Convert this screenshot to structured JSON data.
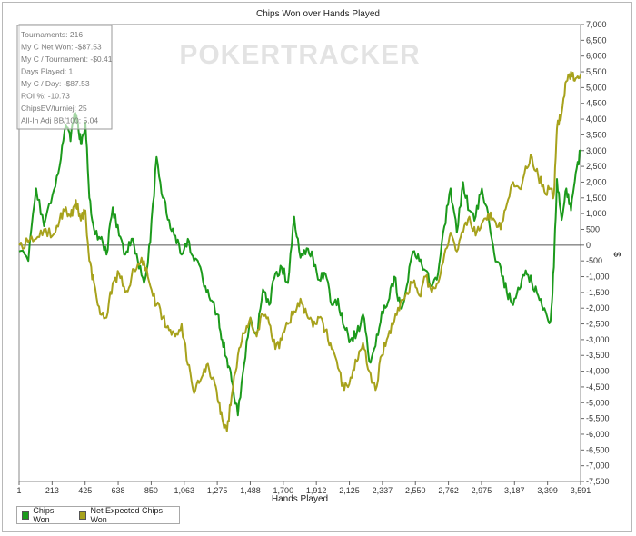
{
  "chart_data": {
    "type": "line",
    "title": "Chips Won over Hands Played",
    "xlabel": "Hands Played",
    "ylabel": "$",
    "xlim": [
      1,
      3591
    ],
    "ylim": [
      -7500,
      7000
    ],
    "x_tick_labels": [
      "1",
      "213",
      "425",
      "638",
      "850",
      "1,063",
      "1,275",
      "1,488",
      "1,700",
      "1,912",
      "2,125",
      "2,337",
      "2,550",
      "2,762",
      "2,975",
      "3,187",
      "3,399",
      "3,591"
    ],
    "y_tick_labels": [
      "7,000",
      "6,500",
      "6,000",
      "5,500",
      "5,000",
      "4,500",
      "4,000",
      "3,500",
      "3,000",
      "2,500",
      "2,000",
      "1,500",
      "1,000",
      "500",
      "0",
      "-500",
      "-1,000",
      "-1,500",
      "-2,000",
      "-2,500",
      "-3,000",
      "-3,500",
      "-4,000",
      "-4,500",
      "-5,000",
      "-5,500",
      "-6,000",
      "-6,500",
      "-7,000",
      "-7,500"
    ],
    "y_ticks": [
      7000,
      6500,
      6000,
      5500,
      5000,
      4500,
      4000,
      3500,
      3000,
      2500,
      2000,
      1500,
      1000,
      500,
      0,
      -500,
      -1000,
      -1500,
      -2000,
      -2500,
      -3000,
      -3500,
      -4000,
      -4500,
      -5000,
      -5500,
      -6000,
      -6500,
      -7000,
      -7500
    ],
    "grid": false,
    "legend_position": "bottom-left",
    "series": [
      {
        "name": "Chips Won",
        "color": "#1c9a1c",
        "x": [
          1,
          60,
          110,
          160,
          215,
          260,
          300,
          330,
          360,
          380,
          400,
          425,
          450,
          480,
          520,
          560,
          600,
          640,
          680,
          720,
          760,
          800,
          840,
          880,
          920,
          960,
          1000,
          1040,
          1080,
          1120,
          1160,
          1200,
          1240,
          1270,
          1300,
          1330,
          1360,
          1400,
          1440,
          1480,
          1520,
          1560,
          1600,
          1640,
          1680,
          1720,
          1760,
          1800,
          1840,
          1880,
          1920,
          1960,
          2000,
          2040,
          2080,
          2120,
          2160,
          2200,
          2240,
          2280,
          2320,
          2360,
          2400,
          2440,
          2480,
          2520,
          2560,
          2600,
          2640,
          2680,
          2720,
          2760,
          2800,
          2840,
          2880,
          2920,
          2960,
          3000,
          3040,
          3080,
          3120,
          3160,
          3200,
          3240,
          3280,
          3320,
          3360,
          3399,
          3420,
          3440,
          3470,
          3500,
          3530,
          3560,
          3591
        ],
        "y": [
          -200,
          -500,
          1800,
          600,
          1600,
          2500,
          3800,
          3300,
          4200,
          3700,
          3200,
          3900,
          1500,
          500,
          200,
          -300,
          1200,
          300,
          -300,
          200,
          -500,
          -1200,
          100,
          2800,
          1500,
          800,
          300,
          -300,
          200,
          -500,
          -700,
          -1500,
          -1800,
          -2200,
          -3000,
          -3600,
          -4300,
          -5400,
          -3800,
          -2300,
          -2800,
          -1400,
          -1900,
          -900,
          -700,
          -1200,
          900,
          -400,
          -100,
          -400,
          -1100,
          -900,
          -1900,
          -1700,
          -2600,
          -3000,
          -2800,
          -2200,
          -3700,
          -3200,
          -2100,
          -1800,
          -1000,
          -2000,
          -1300,
          -200,
          -500,
          -800,
          -1300,
          -900,
          600,
          1800,
          400,
          2000,
          1100,
          900,
          1800,
          1000,
          -300,
          -700,
          -1500,
          -1900,
          -1400,
          -800,
          -1200,
          -1600,
          -2000,
          -2400,
          -700,
          2100,
          800,
          1800,
          1100,
          2300,
          3000
        ]
      },
      {
        "name": "Net Expected Chips Won",
        "color": "#a7a21c",
        "x": [
          1,
          60,
          110,
          160,
          215,
          260,
          300,
          330,
          360,
          380,
          400,
          425,
          450,
          480,
          520,
          560,
          600,
          640,
          680,
          720,
          760,
          800,
          840,
          880,
          920,
          960,
          1000,
          1040,
          1080,
          1120,
          1160,
          1200,
          1240,
          1270,
          1300,
          1330,
          1360,
          1400,
          1440,
          1480,
          1520,
          1560,
          1600,
          1640,
          1680,
          1720,
          1760,
          1800,
          1840,
          1880,
          1920,
          1960,
          2000,
          2040,
          2080,
          2120,
          2160,
          2200,
          2240,
          2280,
          2320,
          2360,
          2400,
          2440,
          2480,
          2520,
          2560,
          2600,
          2640,
          2680,
          2720,
          2760,
          2800,
          2840,
          2880,
          2920,
          2960,
          3000,
          3040,
          3080,
          3120,
          3160,
          3200,
          3240,
          3280,
          3320,
          3360,
          3399,
          3420,
          3440,
          3470,
          3500,
          3530,
          3560,
          3591
        ],
        "y": [
          0,
          100,
          200,
          500,
          300,
          800,
          1200,
          900,
          1300,
          1100,
          900,
          1100,
          -500,
          -1200,
          -2200,
          -2300,
          -1200,
          -900,
          -1500,
          -1000,
          -600,
          -500,
          -1300,
          -1900,
          -2300,
          -2700,
          -2900,
          -2500,
          -3800,
          -4700,
          -4300,
          -3800,
          -4200,
          -4900,
          -5500,
          -5900,
          -4800,
          -3500,
          -2800,
          -2300,
          -2900,
          -2200,
          -2500,
          -3300,
          -3000,
          -2500,
          -2100,
          -1700,
          -2200,
          -2600,
          -2300,
          -2700,
          -3300,
          -3900,
          -4600,
          -4200,
          -3700,
          -3100,
          -4000,
          -4600,
          -3500,
          -2900,
          -2400,
          -1800,
          -1500,
          -1200,
          -1600,
          -1000,
          -1500,
          -1200,
          -300,
          400,
          -200,
          400,
          900,
          300,
          700,
          1000,
          800,
          500,
          1300,
          2000,
          1800,
          2500,
          2800,
          2200,
          1700,
          1800,
          1600,
          3700,
          4200,
          5200,
          5500,
          5300,
          5400
        ]
      }
    ]
  },
  "stats_box": [
    "Tournaments: 216",
    "My C Net Won: -$87.53",
    "My C / Tournament: -$0.41",
    "Days Played: 1",
    "My C / Day: -$87.53",
    "ROI %: -10.73",
    "ChipsEV/turniej: 25",
    "All-In Adj BB/100: 5.04"
  ],
  "watermark": "POKERTRACKER",
  "legend": [
    {
      "label": "Chips Won",
      "color": "#1c9a1c"
    },
    {
      "label": "Net Expected Chips Won",
      "color": "#a7a21c"
    }
  ]
}
